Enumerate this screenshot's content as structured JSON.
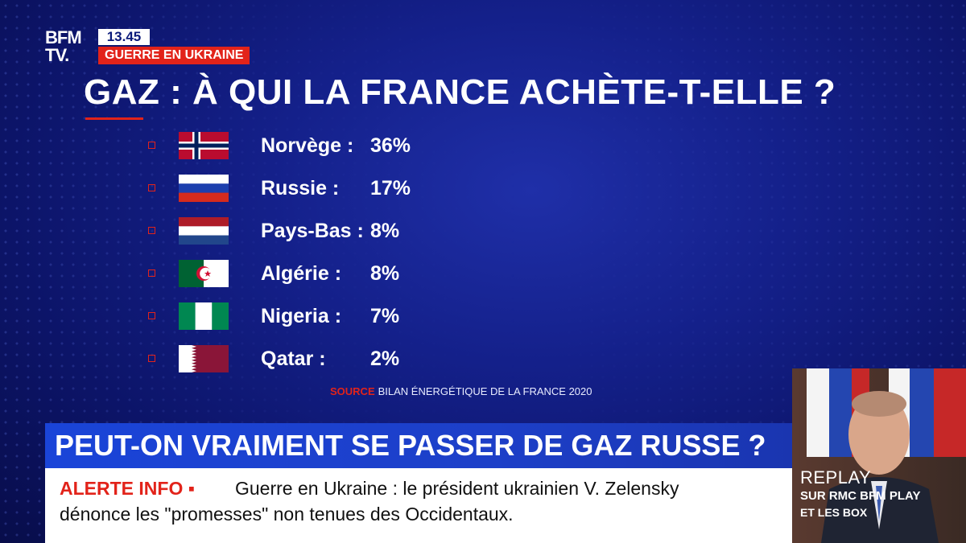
{
  "channel": {
    "logo_line1": "BFM",
    "logo_line2": "TV.",
    "time": "13.45",
    "section": "GUERRE EN UKRAINE"
  },
  "graphic": {
    "title": "GAZ : À QUI LA FRANCE ACHÈTE-T-ELLE ?",
    "rows": [
      {
        "country": "Norvège :",
        "share": "36%",
        "flag": "norway-flag-icon"
      },
      {
        "country": "Russie :",
        "share": "17%",
        "flag": "russia-flag-icon"
      },
      {
        "country": "Pays-Bas :",
        "share": "8%",
        "flag": "netherlands-flag-icon"
      },
      {
        "country": "Algérie :",
        "share": "8%",
        "flag": "algeria-flag-icon"
      },
      {
        "country": "Nigeria :",
        "share": "7%",
        "flag": "nigeria-flag-icon"
      },
      {
        "country": "Qatar :",
        "share": "2%",
        "flag": "qatar-flag-icon"
      }
    ],
    "source_label": "SOURCE",
    "source_text": "BILAN ÉNERGÉTIQUE DE LA FRANCE 2020"
  },
  "headline": "PEUT-ON VRAIMENT SE PASSER DE GAZ RUSSE ?",
  "ticker": {
    "label": "ALERTE INFO ▪",
    "line1": "Guerre en Ukraine : le président ukrainien V. Zelensky",
    "line2": "dénonce les \"promesses\" non tenues des Occidentaux."
  },
  "replay": {
    "title": "REPLAY",
    "line1": "SUR RMC BFM PLAY",
    "line2": "ET LES BOX"
  },
  "colors": {
    "accent_red": "#e2231a",
    "background_blue": "#14208a",
    "headline_blue": "#1a44d8"
  }
}
